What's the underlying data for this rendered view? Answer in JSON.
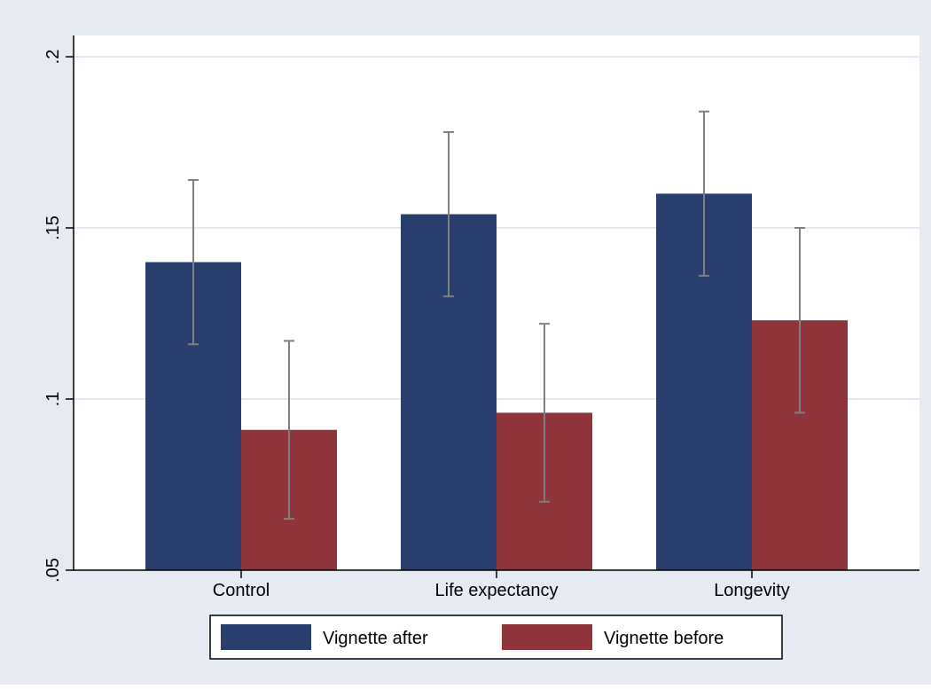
{
  "colors": {
    "outer_background": "#e6ebf3",
    "plot_background": "#ffffff",
    "gridline": "#e2e8ef",
    "axis": "#000000",
    "error_bar": "#7f7f7f",
    "vignette_after": "#283f6e",
    "vignette_before": "#90343c"
  },
  "chart_data": {
    "type": "bar",
    "categories": [
      "Control",
      "Life expectancy",
      "Longevity"
    ],
    "series": [
      {
        "name": "Vignette after",
        "color": "#283f6e",
        "values": [
          0.14,
          0.154,
          0.16
        ],
        "ci_low": [
          0.116,
          0.13,
          0.136
        ],
        "ci_high": [
          0.164,
          0.178,
          0.184
        ]
      },
      {
        "name": "Vignette before",
        "color": "#90343c",
        "values": [
          0.091,
          0.096,
          0.123
        ],
        "ci_low": [
          0.065,
          0.07,
          0.096
        ],
        "ci_high": [
          0.117,
          0.122,
          0.15
        ]
      }
    ],
    "ylim": [
      0.05,
      0.2
    ],
    "yticks": [
      0.05,
      0.1,
      0.15,
      0.2
    ],
    "ytick_labels": [
      ".05",
      ".1",
      ".15",
      ".2"
    ],
    "y_tick_label_orientation": "vertical",
    "grid": "horizontal",
    "legend_position": "bottom",
    "error_bars": true
  }
}
